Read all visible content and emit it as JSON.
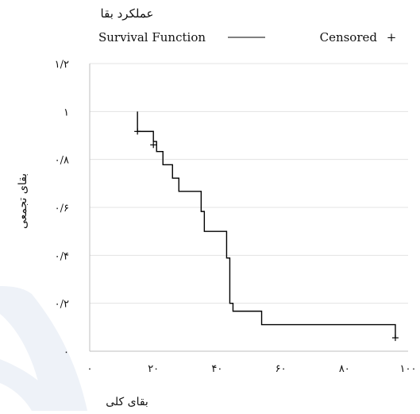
{
  "chart_data": {
    "type": "line",
    "title": "عملکرد بقا",
    "xlabel": "بقای کلی",
    "ylabel": "بقای تجمعی",
    "xlim": [
      0,
      100
    ],
    "ylim": [
      0,
      1.2
    ],
    "x_ticks": [
      {
        "value": 0,
        "label": "۰"
      },
      {
        "value": 20,
        "label": "۲۰"
      },
      {
        "value": 40,
        "label": "۴۰"
      },
      {
        "value": 60,
        "label": "۶۰"
      },
      {
        "value": 80,
        "label": "۸۰"
      },
      {
        "value": 100,
        "label": "۱۰۰"
      }
    ],
    "y_ticks": [
      {
        "value": 0,
        "label": "۰"
      },
      {
        "value": 0.2,
        "label": "۰/۲"
      },
      {
        "value": 0.4,
        "label": "۰/۴"
      },
      {
        "value": 0.6,
        "label": "۰/۶"
      },
      {
        "value": 0.8,
        "label": "۰/۸"
      },
      {
        "value": 1.0,
        "label": "۱"
      },
      {
        "value": 1.2,
        "label": "۱/۲"
      }
    ],
    "grid": {
      "horizontal": true,
      "vertical": false
    },
    "legend": {
      "placement": "top",
      "entries": [
        {
          "label": "Survival Function",
          "marker": "line"
        },
        {
          "label": "Censored",
          "marker": "+"
        }
      ]
    },
    "series": [
      {
        "name": "Survival Function",
        "step": true,
        "x": [
          15,
          15,
          20,
          21,
          23,
          26,
          28,
          35,
          36,
          43,
          44,
          45,
          54,
          96
        ],
        "y": [
          1.0,
          0.917,
          0.875,
          0.833,
          0.778,
          0.722,
          0.667,
          0.583,
          0.5,
          0.389,
          0.2,
          0.167,
          0.111,
          0.056
        ]
      },
      {
        "name": "Censored",
        "type": "scatter",
        "marker": "+",
        "x": [
          15,
          20,
          96
        ],
        "y": [
          0.917,
          0.861,
          0.056
        ]
      }
    ],
    "colors": {
      "line": "#000000",
      "grid": "#e3e3e3",
      "axis": "#bfbfbf"
    }
  },
  "watermark": {
    "color": "#eef2f8"
  }
}
